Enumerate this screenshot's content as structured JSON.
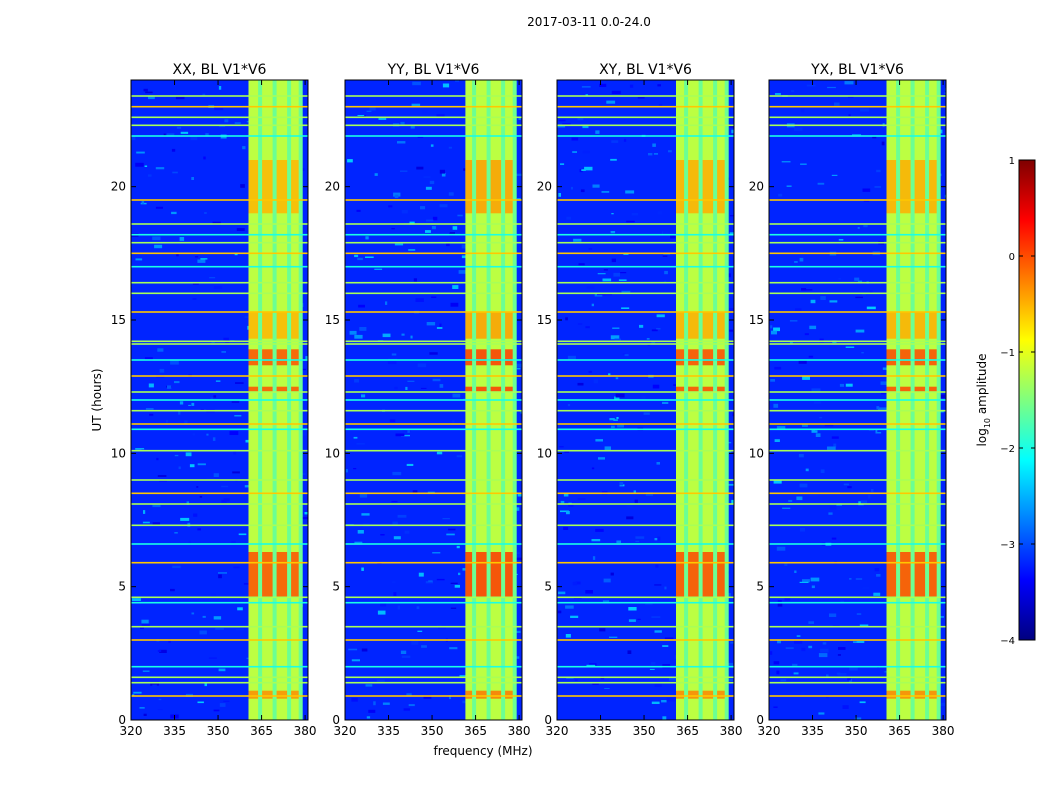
{
  "figure": {
    "suptitle": "2017-03-11 0.0-24.0",
    "xlabel": "frequency (MHz)",
    "ylabel": "UT (hours)"
  },
  "colorbar": {
    "label_main": "log",
    "label_sub": "10",
    "label_rest": " amplitude",
    "range": [
      -4,
      1
    ],
    "ticks": [
      1,
      0,
      -1,
      -2,
      -3,
      -4
    ],
    "tick_labels": [
      "1",
      "0",
      "−1",
      "−2",
      "−3",
      "−4"
    ],
    "colormap": "jet",
    "colors": [
      "#00007f",
      "#0000ff",
      "#007fff",
      "#00ffff",
      "#7fff7f",
      "#ffff00",
      "#ff7f00",
      "#ff0000",
      "#7f0000"
    ]
  },
  "chart_data": {
    "type": "heatmap",
    "value_description": "log10 visibility amplitude vs frequency and UT time",
    "x_range": [
      320,
      381
    ],
    "y_range": [
      0,
      24
    ],
    "x_ticks": [
      320,
      335,
      350,
      365,
      380
    ],
    "x_tick_labels": [
      "320",
      "335",
      "350",
      "365",
      "380"
    ],
    "y_ticks": [
      0,
      5,
      10,
      15,
      20
    ],
    "y_tick_labels": [
      "0",
      "5",
      "10",
      "15",
      "20"
    ],
    "background_level": -3.2,
    "band_freq_range_mhz": [
      360.5,
      378
    ],
    "band_level": -1.2,
    "band_gap_freqs_mhz": [
      364.5,
      369.5,
      374.5,
      378.5
    ],
    "hot_times_hours": [
      {
        "start": 4.6,
        "end": 6.3,
        "level": -0.1
      },
      {
        "start": 12.3,
        "end": 12.5,
        "level": -0.1
      },
      {
        "start": 13.3,
        "end": 13.9,
        "level": -0.1
      },
      {
        "start": 14.3,
        "end": 15.3,
        "level": -0.6
      },
      {
        "start": 19.0,
        "end": 21.0,
        "level": -0.6
      },
      {
        "start": 0.8,
        "end": 1.1,
        "level": -0.4
      }
    ],
    "rfi_lines_hours": [
      0.9,
      1.4,
      1.6,
      2.0,
      3.0,
      3.5,
      4.4,
      4.6,
      5.9,
      6.6,
      7.3,
      8.1,
      8.5,
      9.0,
      10.1,
      10.9,
      11.1,
      11.6,
      12.0,
      12.3,
      12.9,
      13.5,
      14.1,
      14.2,
      15.3,
      16.0,
      16.4,
      17.0,
      17.5,
      17.9,
      18.2,
      18.6,
      19.5,
      21.9,
      22.3,
      22.6,
      23.0,
      23.4
    ],
    "panels": [
      {
        "title": "XX, BL V1*V6",
        "band_start_mhz": 360.5,
        "hot_boost": 0.2,
        "show_ylabels": true
      },
      {
        "title": "YY, BL V1*V6",
        "band_start_mhz": 361.5,
        "hot_boost": 0.5,
        "show_ylabels": true
      },
      {
        "title": "XY, BL V1*V6",
        "band_start_mhz": 361.0,
        "hot_boost": 0.3,
        "show_ylabels": true
      },
      {
        "title": "YX, BL V1*V6",
        "band_start_mhz": 360.5,
        "hot_boost": 0.3,
        "show_ylabels": true
      }
    ]
  }
}
